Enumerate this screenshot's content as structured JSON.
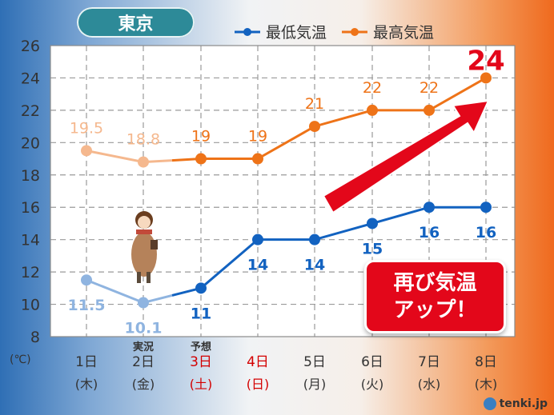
{
  "city": "東京",
  "logo": "tenki.jp",
  "callout": {
    "line1": "再び気温",
    "line2": "アップ！"
  },
  "colors": {
    "min_actual": "#8fb4e0",
    "min_forecast": "#1262c0",
    "max_actual": "#f5b88e",
    "max_forecast": "#ee7318",
    "arrow": "#e3071a",
    "holiday_text": "#d40000"
  },
  "chart_data": {
    "type": "line",
    "unit": "(℃)",
    "ylim": [
      8,
      26
    ],
    "yticks": [
      8,
      10,
      12,
      14,
      16,
      18,
      20,
      22,
      24,
      26
    ],
    "grid": true,
    "legend_position": "top",
    "categories": [
      {
        "day": "1日",
        "weekday": "(木)",
        "holiday": false,
        "note": ""
      },
      {
        "day": "2日",
        "weekday": "(金)",
        "holiday": false,
        "note": "実況"
      },
      {
        "day": "3日",
        "weekday": "(土)",
        "holiday": true,
        "note": "予想"
      },
      {
        "day": "4日",
        "weekday": "(日)",
        "holiday": true,
        "note": ""
      },
      {
        "day": "5日",
        "weekday": "(月)",
        "holiday": false,
        "note": ""
      },
      {
        "day": "6日",
        "weekday": "(火)",
        "holiday": false,
        "note": ""
      },
      {
        "day": "7日",
        "weekday": "(水)",
        "holiday": false,
        "note": ""
      },
      {
        "day": "8日",
        "weekday": "(木)",
        "holiday": false,
        "note": ""
      }
    ],
    "series": [
      {
        "name": "最低気温",
        "values": [
          11.5,
          10.1,
          11,
          14,
          14,
          15,
          16,
          16
        ],
        "labels": [
          "11.5",
          "10.1",
          "11",
          "14",
          "14",
          "15",
          "16",
          "16"
        ]
      },
      {
        "name": "最高気温",
        "values": [
          19.5,
          18.8,
          19,
          19,
          21,
          22,
          22,
          24
        ],
        "labels": [
          "19.5",
          "18.8",
          "19",
          "19",
          "21",
          "22",
          "22",
          "24"
        ]
      }
    ]
  }
}
